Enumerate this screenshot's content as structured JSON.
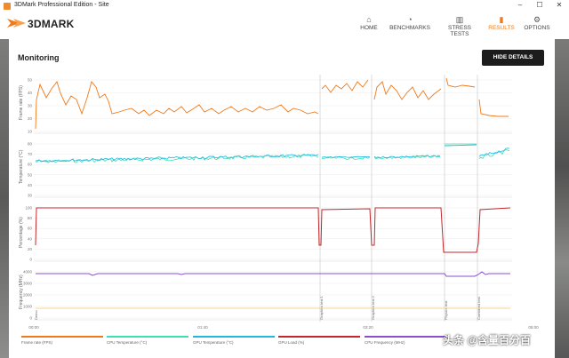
{
  "window": {
    "title": "3DMark Professional Edition - Site"
  },
  "app": {
    "logo_text": "3DMARK"
  },
  "nav": [
    {
      "label": "HOME",
      "icon": "home-icon"
    },
    {
      "label": "BENCHMARKS",
      "icon": "gauge-icon"
    },
    {
      "label": "STRESS TESTS",
      "icon": "bars-icon"
    },
    {
      "label": "RESULTS",
      "icon": "chart-icon",
      "active": true
    },
    {
      "label": "OPTIONS",
      "icon": "gear-icon"
    }
  ],
  "monitoring": {
    "title": "Monitoring",
    "hide_button": "HIDE DETAILS"
  },
  "chart_data": {
    "type": "line",
    "x_ticks": [
      "00:00",
      "01:40",
      "03:20",
      "05:00"
    ],
    "panels": [
      {
        "ylabel": "Frame rate (FPS)",
        "yticks": [
          "50",
          "40",
          "30",
          "20",
          "10"
        ]
      },
      {
        "ylabel": "Temperature (°C)",
        "yticks": [
          "80",
          "70",
          "60",
          "50",
          "40",
          "30"
        ]
      },
      {
        "ylabel": "Percentage (%)",
        "yticks": [
          "100",
          "80",
          "60",
          "40",
          "20",
          "0"
        ]
      },
      {
        "ylabel": "Frequency (MHz)",
        "yticks": [
          "4000",
          "3000",
          "2000",
          "1000",
          "0"
        ]
      }
    ],
    "markers": [
      "Demo",
      "Graphics test 1",
      "Graphics test 2",
      "Physics test",
      "Combined test"
    ],
    "series": [
      {
        "name": "Frame rate (FPS)",
        "color": "#f07a1b"
      },
      {
        "name": "CPU Temperature (°C)",
        "color": "#3de0b0"
      },
      {
        "name": "GPU Temperature (°C)",
        "color": "#22b8e0"
      },
      {
        "name": "GPU Load (%)",
        "color": "#c0282c"
      },
      {
        "name": "CPU Frequency (MHz)",
        "color": "#8a4fd0"
      },
      {
        "name": "GPU Memory Clock",
        "color": "#f5c46a"
      }
    ]
  },
  "watermark": "头条 @含量百分百"
}
